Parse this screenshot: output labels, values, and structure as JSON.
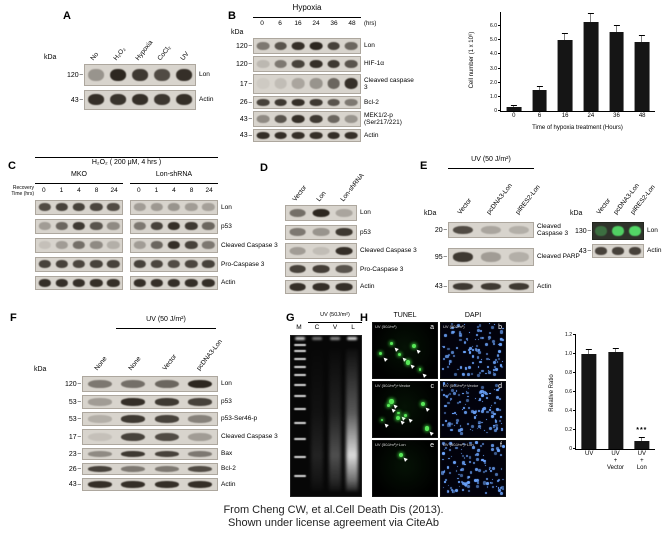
{
  "figure": {
    "footer_line1": "From Cheng CW, et al.Cell Death Dis (2013).",
    "footer_line2": "Shown under license agreement via CiteAb"
  },
  "panelA": {
    "label": "A",
    "kda_header": "kDa",
    "lanes": [
      "No",
      "H₂O₂",
      "Hypoxia",
      "CoCl₂",
      "UV"
    ],
    "rows": [
      {
        "kda": "120",
        "name": "Lon",
        "bands": [
          0.35,
          0.95,
          0.85,
          0.75,
          0.9
        ]
      },
      {
        "kda": "43",
        "name": "Actin",
        "bands": [
          0.9,
          0.88,
          0.9,
          0.86,
          0.9
        ]
      }
    ]
  },
  "panelB": {
    "label": "B",
    "title": "Hypoxia",
    "kda_header": "kDa",
    "lanes": [
      "0",
      "6",
      "16",
      "24",
      "36",
      "48"
    ],
    "lanes_unit": "(hrs)",
    "rows": [
      {
        "kda": "120",
        "name": "Lon",
        "bands": [
          0.5,
          0.7,
          0.9,
          0.95,
          0.8,
          0.6
        ]
      },
      {
        "kda": "120",
        "name": "HIF-1α",
        "bands": [
          0.15,
          0.5,
          0.8,
          0.9,
          0.85,
          0.7
        ]
      },
      {
        "kda": "17",
        "name": "Cleaved caspase 3",
        "bands": [
          0.05,
          0.12,
          0.25,
          0.35,
          0.6,
          0.9
        ]
      },
      {
        "kda": "26",
        "name": "Bcl-2",
        "bands": [
          0.8,
          0.85,
          0.9,
          0.85,
          0.7,
          0.5
        ]
      },
      {
        "kda": "43",
        "name": "MEK1/2-p (Ser217/221)",
        "bands": [
          0.4,
          0.7,
          0.9,
          0.85,
          0.6,
          0.35
        ]
      },
      {
        "kda": "43",
        "name": "Actin",
        "bands": [
          0.9,
          0.9,
          0.9,
          0.9,
          0.9,
          0.9
        ]
      }
    ]
  },
  "panelC": {
    "label": "C",
    "title": "H₂O₂ ( 200 μM, 4 hrs )",
    "recovery_label": "Recovery Time (hrs)",
    "groups": [
      "MKO",
      "Lon-shRNA"
    ],
    "lanes": [
      "0",
      "1",
      "4",
      "8",
      "24"
    ],
    "rows": [
      {
        "name": "Lon",
        "strips": [
          [
            0.75,
            0.8,
            0.8,
            0.78,
            0.75
          ],
          [
            0.3,
            0.32,
            0.35,
            0.3,
            0.28
          ]
        ]
      },
      {
        "name": "p53",
        "strips": [
          [
            0.3,
            0.6,
            0.85,
            0.7,
            0.4
          ],
          [
            0.5,
            0.8,
            0.9,
            0.85,
            0.6
          ]
        ]
      },
      {
        "name": "Cleaved Caspase 3",
        "strips": [
          [
            0.1,
            0.3,
            0.55,
            0.4,
            0.2
          ],
          [
            0.3,
            0.6,
            0.9,
            0.8,
            0.5
          ]
        ]
      },
      {
        "name": "Pro-Caspase 3",
        "strips": [
          [
            0.8,
            0.8,
            0.78,
            0.8,
            0.8
          ],
          [
            0.8,
            0.78,
            0.75,
            0.78,
            0.8
          ]
        ]
      },
      {
        "name": "Actin",
        "strips": [
          [
            0.9,
            0.9,
            0.9,
            0.9,
            0.9
          ],
          [
            0.9,
            0.9,
            0.9,
            0.9,
            0.9
          ]
        ]
      }
    ]
  },
  "panelD": {
    "label": "D",
    "lanes": [
      "Vector",
      "Lon",
      "Lon-shRNA"
    ],
    "rows": [
      {
        "name": "Lon",
        "bands": [
          0.55,
          0.95,
          0.25
        ]
      },
      {
        "name": "p53",
        "bands": [
          0.5,
          0.35,
          0.85
        ]
      },
      {
        "name": "Cleaved Caspase 3",
        "bands": [
          0.3,
          0.12,
          0.9
        ]
      },
      {
        "name": "Pro-Caspase 3",
        "bands": [
          0.8,
          0.82,
          0.7
        ]
      },
      {
        "name": "Actin",
        "bands": [
          0.9,
          0.9,
          0.9
        ]
      }
    ]
  },
  "panelE": {
    "label": "E",
    "title": "UV (50 J/m²)",
    "kda_header": "kDa",
    "lanes": [
      "Vector",
      "pcDNA3-Lon",
      "pIRES2-Lon"
    ],
    "rows": [
      {
        "kda": "20",
        "name": "Cleaved Caspase 3",
        "bands": [
          0.75,
          0.25,
          0.2
        ]
      },
      {
        "kda": "95",
        "name": "Cleaved PARP",
        "bands": [
          0.85,
          0.3,
          0.2
        ]
      },
      {
        "kda": "43",
        "name": "Actin",
        "bands": [
          0.85,
          0.85,
          0.85
        ]
      }
    ],
    "blot2": {
      "kda_header": "kDa",
      "lanes": [
        "Vector",
        "pcDNA3-Lon",
        "pIRES2-Lon"
      ],
      "rows": [
        {
          "kda": "130",
          "name": "Lon",
          "bands": [
            0.35,
            0.9,
            0.95
          ]
        },
        {
          "kda": "43",
          "name": "Actin",
          "bands": [
            0.8,
            0.8,
            0.8
          ]
        }
      ]
    }
  },
  "panelF": {
    "label": "F",
    "title": "UV (50 J/m²)",
    "kda_header": "kDa",
    "lanes": [
      "None",
      "None",
      "Vector",
      "pcDNA3-Lon"
    ],
    "rows": [
      {
        "kda": "120",
        "name": "Lon",
        "bands": [
          0.5,
          0.55,
          0.6,
          0.95
        ]
      },
      {
        "kda": "53",
        "name": "p53",
        "bands": [
          0.3,
          0.9,
          0.85,
          0.8
        ]
      },
      {
        "kda": "53",
        "name": "p53-Ser46-p",
        "bands": [
          0.2,
          0.85,
          0.8,
          0.45
        ]
      },
      {
        "kda": "17",
        "name": "Cleaved Caspase 3",
        "bands": [
          0.1,
          0.8,
          0.75,
          0.3
        ]
      },
      {
        "kda": "23",
        "name": "Bax",
        "bands": [
          0.4,
          0.85,
          0.8,
          0.5
        ]
      },
      {
        "kda": "26",
        "name": "Bcl-2",
        "bands": [
          0.8,
          0.5,
          0.5,
          0.75
        ]
      },
      {
        "kda": "43",
        "name": "Actin",
        "bands": [
          0.9,
          0.9,
          0.9,
          0.9
        ]
      }
    ]
  },
  "panelG": {
    "label": "G",
    "title": "UV (50J/m²)",
    "lanes": [
      "M",
      "C",
      "V",
      "L"
    ],
    "ladder": [
      0.05,
      0.09,
      0.135,
      0.185,
      0.24,
      0.3,
      0.37,
      0.45,
      0.54,
      0.64,
      0.75,
      0.87
    ],
    "wells": [
      0.9,
      0.5,
      0.6,
      0.95
    ],
    "smears": [
      {
        "lane": 1,
        "strength": 0.12
      },
      {
        "lane": 2,
        "strength": 0.32
      },
      {
        "lane": 3,
        "strength": 0.95
      }
    ]
  },
  "panelH": {
    "label": "H",
    "columns": [
      "TUNEL",
      "DAPI"
    ],
    "cells": [
      {
        "letter": "a",
        "caption": "UV (50J/m²)",
        "type": "tunel",
        "dots": 6
      },
      {
        "letter": "b",
        "caption": "UV (50J/m²)",
        "type": "dapi",
        "dots": 110
      },
      {
        "letter": "c",
        "caption": "UV (50J/m²)+Vector",
        "type": "tunel",
        "dots": 8
      },
      {
        "letter": "d",
        "caption": "UV (50J/m²)+Vector",
        "type": "dapi",
        "dots": 115
      },
      {
        "letter": "e",
        "caption": "UV (50J/m²)+Lon",
        "type": "tunel",
        "dots": 1
      },
      {
        "letter": "f",
        "caption": "UV (50J/m²)+Lon",
        "type": "dapi",
        "dots": 120
      }
    ]
  },
  "chart_data": {
    "hypoxia_growth": {
      "type": "bar",
      "title": "",
      "ylabel": "Cell number (1 x 10⁶)",
      "xlabel": "Time of hypoxia treatment (Hours)",
      "categories": [
        "0",
        "6",
        "16",
        "24",
        "36",
        "48"
      ],
      "values": [
        0.3,
        1.5,
        5.0,
        6.3,
        5.6,
        4.9
      ],
      "errors": [
        0.1,
        0.3,
        0.5,
        0.6,
        0.5,
        0.5
      ],
      "ylim": [
        0,
        7
      ],
      "yticks": [
        "0",
        "1.0",
        "2.0",
        "3.0",
        "4.0",
        "5.0",
        "6.0"
      ]
    },
    "tunel_ratio": {
      "type": "bar",
      "title": "",
      "ylabel": "Relative Ratio",
      "xlabel": "",
      "categories": [
        "UV",
        [
          "UV",
          "+",
          "Vector"
        ],
        [
          "UV",
          "+",
          "Lon"
        ]
      ],
      "values": [
        1.0,
        1.02,
        0.08
      ],
      "errors": [
        0.05,
        0.04,
        0.05
      ],
      "annotations": [
        "",
        "",
        "***"
      ],
      "ylim": [
        0,
        1.2
      ],
      "yticks": [
        "0",
        "0.2",
        "0.4",
        "0.6",
        "0.8",
        "1.0",
        "1.2"
      ]
    }
  }
}
